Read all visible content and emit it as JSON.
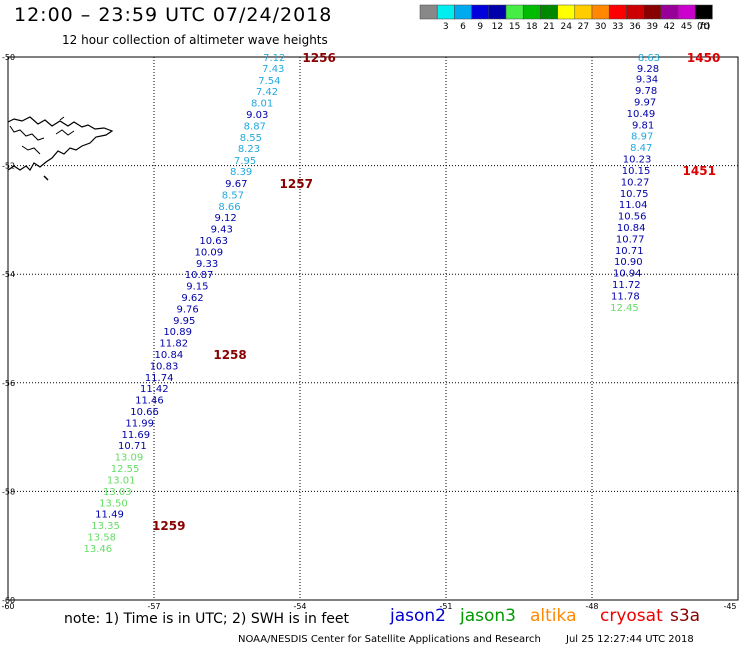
{
  "header": {
    "title": "12:00 – 23:59 UTC 07/24/2018",
    "subtitle": "12 hour collection of altimeter wave heights"
  },
  "scale": {
    "unit": "(ft)",
    "bins": [
      {
        "label": "",
        "color": "#888888"
      },
      {
        "label": "3",
        "color": "#00eeee"
      },
      {
        "label": "6",
        "color": "#00aaee"
      },
      {
        "label": "9",
        "color": "#0000dd"
      },
      {
        "label": "12",
        "color": "#0000aa"
      },
      {
        "label": "15",
        "color": "#44ee44"
      },
      {
        "label": "18",
        "color": "#00bb00"
      },
      {
        "label": "21",
        "color": "#008800"
      },
      {
        "label": "24",
        "color": "#ffff00"
      },
      {
        "label": "27",
        "color": "#ffcc00"
      },
      {
        "label": "30",
        "color": "#ff8800"
      },
      {
        "label": "33",
        "color": "#ff0000"
      },
      {
        "label": "36",
        "color": "#cc0000"
      },
      {
        "label": "39",
        "color": "#880000"
      },
      {
        "label": "42",
        "color": "#990099"
      },
      {
        "label": "45",
        "color": "#cc00cc"
      },
      {
        "label": "70",
        "color": "#000000"
      }
    ]
  },
  "axes": {
    "lon_ticks": [
      {
        "lon": -60,
        "label": "-60"
      },
      {
        "lon": -57,
        "label": "-57"
      },
      {
        "lon": -54,
        "label": "-54"
      },
      {
        "lon": -51,
        "label": "-51"
      },
      {
        "lon": -48,
        "label": "-48"
      },
      {
        "lon": -45,
        "label": "-45"
      }
    ],
    "lat_ticks": [
      {
        "lat": -50,
        "label": "-50"
      },
      {
        "lat": -52,
        "label": "-52"
      },
      {
        "lat": -54,
        "label": "-54"
      },
      {
        "lat": -56,
        "label": "-56"
      },
      {
        "lat": -58,
        "label": "-58"
      },
      {
        "lat": -60,
        "label": "-60"
      }
    ],
    "lon_range": [
      -60,
      -45
    ],
    "lat_range": [
      -60,
      -50
    ]
  },
  "tracks": [
    {
      "points": [
        {
          "lon": -54.3,
          "lat": -50.0,
          "value": "7.12",
          "color": "#22aadd"
        },
        {
          "lon": -54.32,
          "lat": -50.2,
          "value": "7.43",
          "color": "#22aadd"
        },
        {
          "lon": -54.4,
          "lat": -50.42,
          "value": "7.54",
          "color": "#22aadd"
        },
        {
          "lon": -54.45,
          "lat": -50.63,
          "value": "7.42",
          "color": "#22aadd"
        },
        {
          "lon": -54.55,
          "lat": -50.84,
          "value": "8.01",
          "color": "#22aadd"
        },
        {
          "lon": -54.65,
          "lat": -51.05,
          "value": "9.03",
          "color": "#0000aa"
        },
        {
          "lon": -54.7,
          "lat": -51.26,
          "value": "8.87",
          "color": "#22aadd"
        },
        {
          "lon": -54.78,
          "lat": -51.47,
          "value": "8.55",
          "color": "#22aadd"
        },
        {
          "lon": -54.82,
          "lat": -51.68,
          "value": "8.23",
          "color": "#22aadd"
        },
        {
          "lon": -54.9,
          "lat": -51.9,
          "value": "7.95",
          "color": "#22aadd"
        },
        {
          "lon": -54.98,
          "lat": -52.1,
          "value": "8.39",
          "color": "#22aadd"
        },
        {
          "lon": -55.08,
          "lat": -52.32,
          "value": "9.67",
          "color": "#0000aa"
        },
        {
          "lon": -55.15,
          "lat": -52.53,
          "value": "8.57",
          "color": "#22aadd"
        },
        {
          "lon": -55.22,
          "lat": -52.74,
          "value": "8.66",
          "color": "#22aadd"
        },
        {
          "lon": -55.3,
          "lat": -52.95,
          "value": "9.12",
          "color": "#0000aa"
        },
        {
          "lon": -55.38,
          "lat": -53.16,
          "value": "9.43",
          "color": "#0000aa"
        },
        {
          "lon": -55.48,
          "lat": -53.37,
          "value": "10.63",
          "color": "#0000aa"
        },
        {
          "lon": -55.58,
          "lat": -53.58,
          "value": "10.09",
          "color": "#0000aa"
        },
        {
          "lon": -55.68,
          "lat": -53.79,
          "value": "9.33",
          "color": "#0000aa"
        },
        {
          "lon": -55.78,
          "lat": -54.0,
          "value": "10.87",
          "color": "#0000aa"
        },
        {
          "lon": -55.88,
          "lat": -54.21,
          "value": "9.15",
          "color": "#0000aa"
        },
        {
          "lon": -55.98,
          "lat": -54.42,
          "value": "9.62",
          "color": "#0000aa"
        },
        {
          "lon": -56.08,
          "lat": -54.63,
          "value": "9.76",
          "color": "#0000aa"
        },
        {
          "lon": -56.15,
          "lat": -54.84,
          "value": "9.95",
          "color": "#0000aa"
        },
        {
          "lon": -56.22,
          "lat": -55.05,
          "value": "10.89",
          "color": "#0000aa"
        },
        {
          "lon": -56.3,
          "lat": -55.26,
          "value": "11.82",
          "color": "#0000aa"
        },
        {
          "lon": -56.4,
          "lat": -55.47,
          "value": "10.84",
          "color": "#0000aa"
        },
        {
          "lon": -56.5,
          "lat": -55.68,
          "value": "10.83",
          "color": "#0000aa"
        },
        {
          "lon": -56.6,
          "lat": -55.89,
          "value": "11.74",
          "color": "#0000aa"
        },
        {
          "lon": -56.7,
          "lat": -56.1,
          "value": "11.42",
          "color": "#0000aa"
        },
        {
          "lon": -56.8,
          "lat": -56.31,
          "value": "11.46",
          "color": "#0000aa"
        },
        {
          "lon": -56.9,
          "lat": -56.52,
          "value": "10.66",
          "color": "#0000aa"
        },
        {
          "lon": -57.0,
          "lat": -56.73,
          "value": "11.99",
          "color": "#0000aa"
        },
        {
          "lon": -57.08,
          "lat": -56.94,
          "value": "11.69",
          "color": "#0000aa"
        },
        {
          "lon": -57.15,
          "lat": -57.15,
          "value": "10.71",
          "color": "#0000aa"
        },
        {
          "lon": -57.22,
          "lat": -57.36,
          "value": "13.09",
          "color": "#66dd66"
        },
        {
          "lon": -57.3,
          "lat": -57.57,
          "value": "12.55",
          "color": "#66dd66"
        },
        {
          "lon": -57.38,
          "lat": -57.78,
          "value": "13.01",
          "color": "#66dd66"
        },
        {
          "lon": -57.46,
          "lat": -57.99,
          "value": "13.03",
          "color": "#66dd66"
        },
        {
          "lon": -57.54,
          "lat": -58.2,
          "value": "13.50",
          "color": "#66dd66"
        },
        {
          "lon": -57.62,
          "lat": -58.41,
          "value": "11.49",
          "color": "#0000aa"
        },
        {
          "lon": -57.7,
          "lat": -58.62,
          "value": "13.35",
          "color": "#66dd66"
        },
        {
          "lon": -57.78,
          "lat": -58.83,
          "value": "13.58",
          "color": "#66dd66"
        },
        {
          "lon": -57.86,
          "lat": -59.04,
          "value": "13.46",
          "color": "#66dd66"
        }
      ],
      "time_labels": [
        {
          "lon": -53.95,
          "lat": -50.0,
          "text": "1256"
        },
        {
          "lon": -54.42,
          "lat": -52.32,
          "text": "1257"
        },
        {
          "lon": -55.78,
          "lat": -55.47,
          "text": "1258"
        },
        {
          "lon": -57.04,
          "lat": -58.62,
          "text": "1259"
        }
      ]
    },
    {
      "points": [
        {
          "lon": -46.6,
          "lat": -50.0,
          "value": "8.63",
          "color": "#22aadd"
        },
        {
          "lon": -46.62,
          "lat": -50.2,
          "value": "9.28",
          "color": "#0000aa"
        },
        {
          "lon": -46.64,
          "lat": -50.4,
          "value": "9.34",
          "color": "#0000aa"
        },
        {
          "lon": -46.66,
          "lat": -50.61,
          "value": "9.78",
          "color": "#0000aa"
        },
        {
          "lon": -46.68,
          "lat": -50.82,
          "value": "9.97",
          "color": "#0000aa"
        },
        {
          "lon": -46.7,
          "lat": -51.03,
          "value": "10.49",
          "color": "#0000aa"
        },
        {
          "lon": -46.72,
          "lat": -51.24,
          "value": "9.81",
          "color": "#0000aa"
        },
        {
          "lon": -46.74,
          "lat": -51.45,
          "value": "8.97",
          "color": "#22aadd"
        },
        {
          "lon": -46.76,
          "lat": -51.66,
          "value": "8.47",
          "color": "#22aadd"
        },
        {
          "lon": -46.78,
          "lat": -51.87,
          "value": "10.23",
          "color": "#0000aa"
        },
        {
          "lon": -46.8,
          "lat": -52.08,
          "value": "10.15",
          "color": "#0000aa"
        },
        {
          "lon": -46.82,
          "lat": -52.29,
          "value": "10.27",
          "color": "#0000aa"
        },
        {
          "lon": -46.84,
          "lat": -52.5,
          "value": "10.75",
          "color": "#0000aa"
        },
        {
          "lon": -46.86,
          "lat": -52.71,
          "value": "11.04",
          "color": "#0000aa"
        },
        {
          "lon": -46.88,
          "lat": -52.92,
          "value": "10.56",
          "color": "#0000aa"
        },
        {
          "lon": -46.9,
          "lat": -53.13,
          "value": "10.84",
          "color": "#0000aa"
        },
        {
          "lon": -46.92,
          "lat": -53.34,
          "value": "10.77",
          "color": "#0000aa"
        },
        {
          "lon": -46.94,
          "lat": -53.55,
          "value": "10.71",
          "color": "#0000aa"
        },
        {
          "lon": -46.96,
          "lat": -53.76,
          "value": "10.90",
          "color": "#0000aa"
        },
        {
          "lon": -46.98,
          "lat": -53.97,
          "value": "10.94",
          "color": "#0000aa"
        },
        {
          "lon": -47.0,
          "lat": -54.18,
          "value": "11.72",
          "color": "#0000aa"
        },
        {
          "lon": -47.02,
          "lat": -54.39,
          "value": "11.78",
          "color": "#0000aa"
        },
        {
          "lon": -47.04,
          "lat": -54.6,
          "value": "12.45",
          "color": "#66dd66"
        }
      ],
      "time_labels": [
        {
          "lon": -46.05,
          "lat": -50.0,
          "text": "1450"
        },
        {
          "lon": -46.14,
          "lat": -52.08,
          "text": "1451"
        }
      ]
    }
  ],
  "footer": {
    "note": "note:  1) Time is in UTC;  2) SWH is in feet",
    "satellites": [
      {
        "name": "jason2",
        "color": "#0000cc"
      },
      {
        "name": "jason3",
        "color": "#009900"
      },
      {
        "name": "altika",
        "color": "#ff8800"
      },
      {
        "name": "cryosat",
        "color": "#ee0000"
      },
      {
        "name": "s3a",
        "color": "#880000"
      }
    ],
    "credit": "NOAA/NESDIS Center for Satellite Applications and Research",
    "timestamp": "Jul 25 12:27:44 UTC 2018"
  },
  "style": {
    "time_label_color_a": "#880000",
    "time_label_color_b": "#dd0000"
  }
}
